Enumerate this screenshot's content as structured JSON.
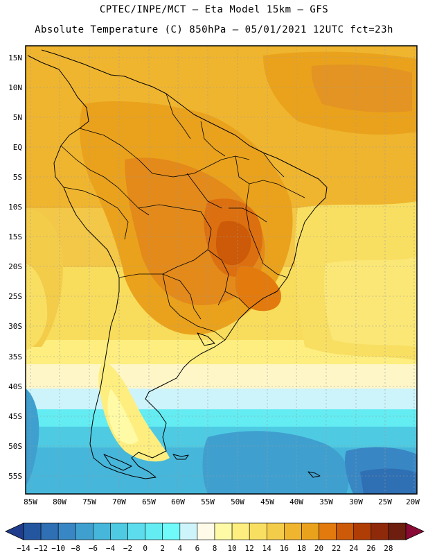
{
  "header": {
    "line1": "CPTEC/INPE/MCT –  Eta Model 15km – GFS",
    "line2": "Absolute Temperature (C) 850hPa – 05/01/2021 12UTC fct=23h"
  },
  "map": {
    "lat_labels": [
      "15N",
      "10N",
      "5N",
      "EQ",
      "5S",
      "10S",
      "15S",
      "20S",
      "25S",
      "30S",
      "35S",
      "40S",
      "45S",
      "50S",
      "55S"
    ],
    "lon_labels": [
      "85W",
      "80W",
      "75W",
      "70W",
      "65W",
      "60W",
      "55W",
      "50W",
      "45W",
      "40W",
      "35W",
      "30W",
      "25W",
      "20W"
    ]
  },
  "colorbar": {
    "labels": [
      "-14",
      "-12",
      "-10",
      "-8",
      "-6",
      "-4",
      "-2",
      "0",
      "2",
      "4",
      "6",
      "8",
      "10",
      "12",
      "14",
      "16",
      "18",
      "20",
      "22",
      "24",
      "26",
      "28"
    ],
    "colors": [
      "#1f3d8c",
      "#2456a0",
      "#2f6fb3",
      "#3887c4",
      "#3fa0cf",
      "#46b6da",
      "#4ecbe3",
      "#5cdcec",
      "#63ecf2",
      "#70fafa",
      "#cdf4fb",
      "#fffbe8",
      "#fffaa6",
      "#fdee7f",
      "#f8df62",
      "#f3cc4a",
      "#efb52f",
      "#eaa21c",
      "#e27a0e",
      "#cc5a08",
      "#b13d06",
      "#8e2a0a",
      "#6e1e0e",
      "#8a0a36"
    ]
  }
}
